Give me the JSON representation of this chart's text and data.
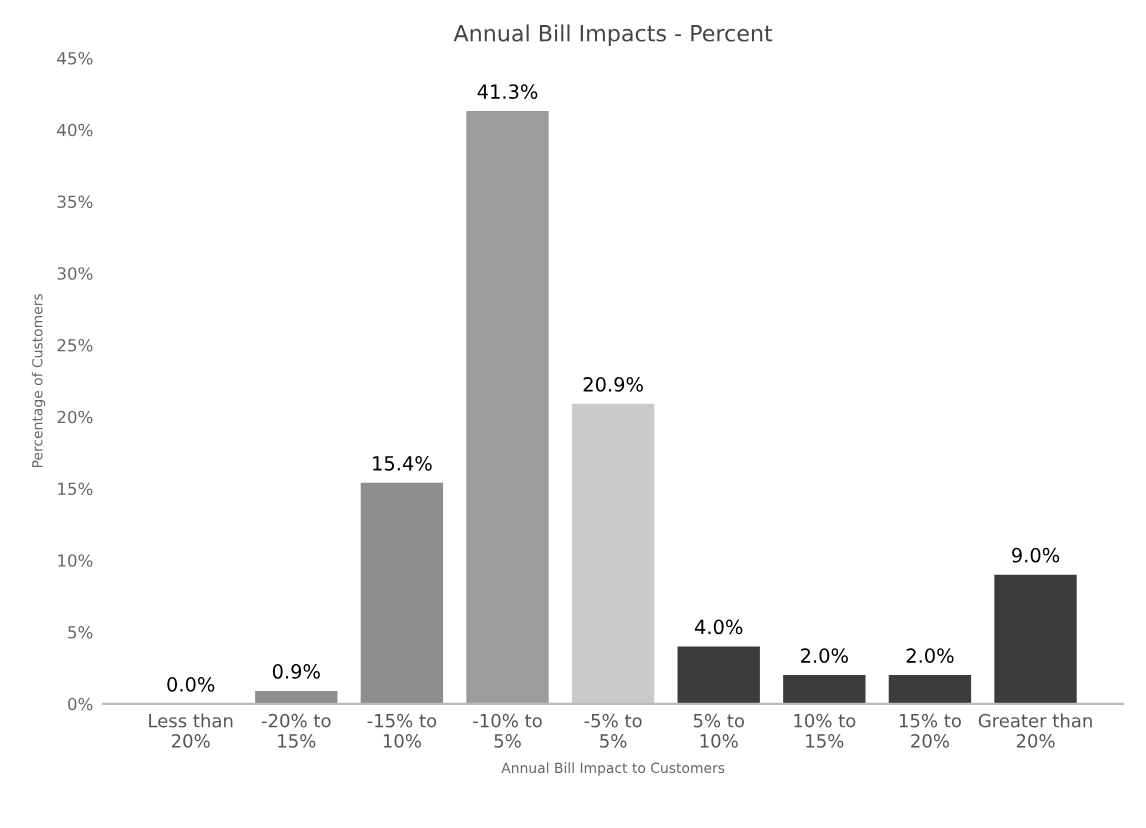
{
  "chart_data": {
    "type": "bar",
    "title": "Annual Bill Impacts - Percent",
    "xlabel": "Annual Bill Impact to Customers",
    "ylabel": "Percentage of Customers",
    "categories": [
      "Less than\n20%",
      "-20% to\n15%",
      "-15% to\n10%",
      "-10% to\n5%",
      "-5% to\n5%",
      "5% to\n10%",
      "10% to\n15%",
      "15% to\n20%",
      "Greater than\n20%"
    ],
    "values": [
      0.0,
      0.9,
      15.4,
      41.3,
      20.9,
      4.0,
      2.0,
      2.0,
      9.0
    ],
    "value_labels": [
      "0.0%",
      "0.9%",
      "15.4%",
      "41.3%",
      "20.9%",
      "4.0%",
      "2.0%",
      "2.0%",
      "9.0%"
    ],
    "colors": [
      "#9a9a9a",
      "#8e8e8e",
      "#8e8e8e",
      "#9c9c9c",
      "#cacaca",
      "#3c3c3c",
      "#3c3c3c",
      "#3c3c3c",
      "#3c3c3c"
    ],
    "ylim": [
      0,
      45
    ],
    "yticks": [
      {
        "value": 0,
        "label": "0%"
      },
      {
        "value": 5,
        "label": "5%"
      },
      {
        "value": 10,
        "label": "10%"
      },
      {
        "value": 15,
        "label": "15%"
      },
      {
        "value": 20,
        "label": "20%"
      },
      {
        "value": 25,
        "label": "25%"
      },
      {
        "value": 30,
        "label": "30%"
      },
      {
        "value": 35,
        "label": "35%"
      },
      {
        "value": 40,
        "label": "40%"
      },
      {
        "value": 45,
        "label": "45%"
      }
    ],
    "grid": false,
    "legend": false
  }
}
